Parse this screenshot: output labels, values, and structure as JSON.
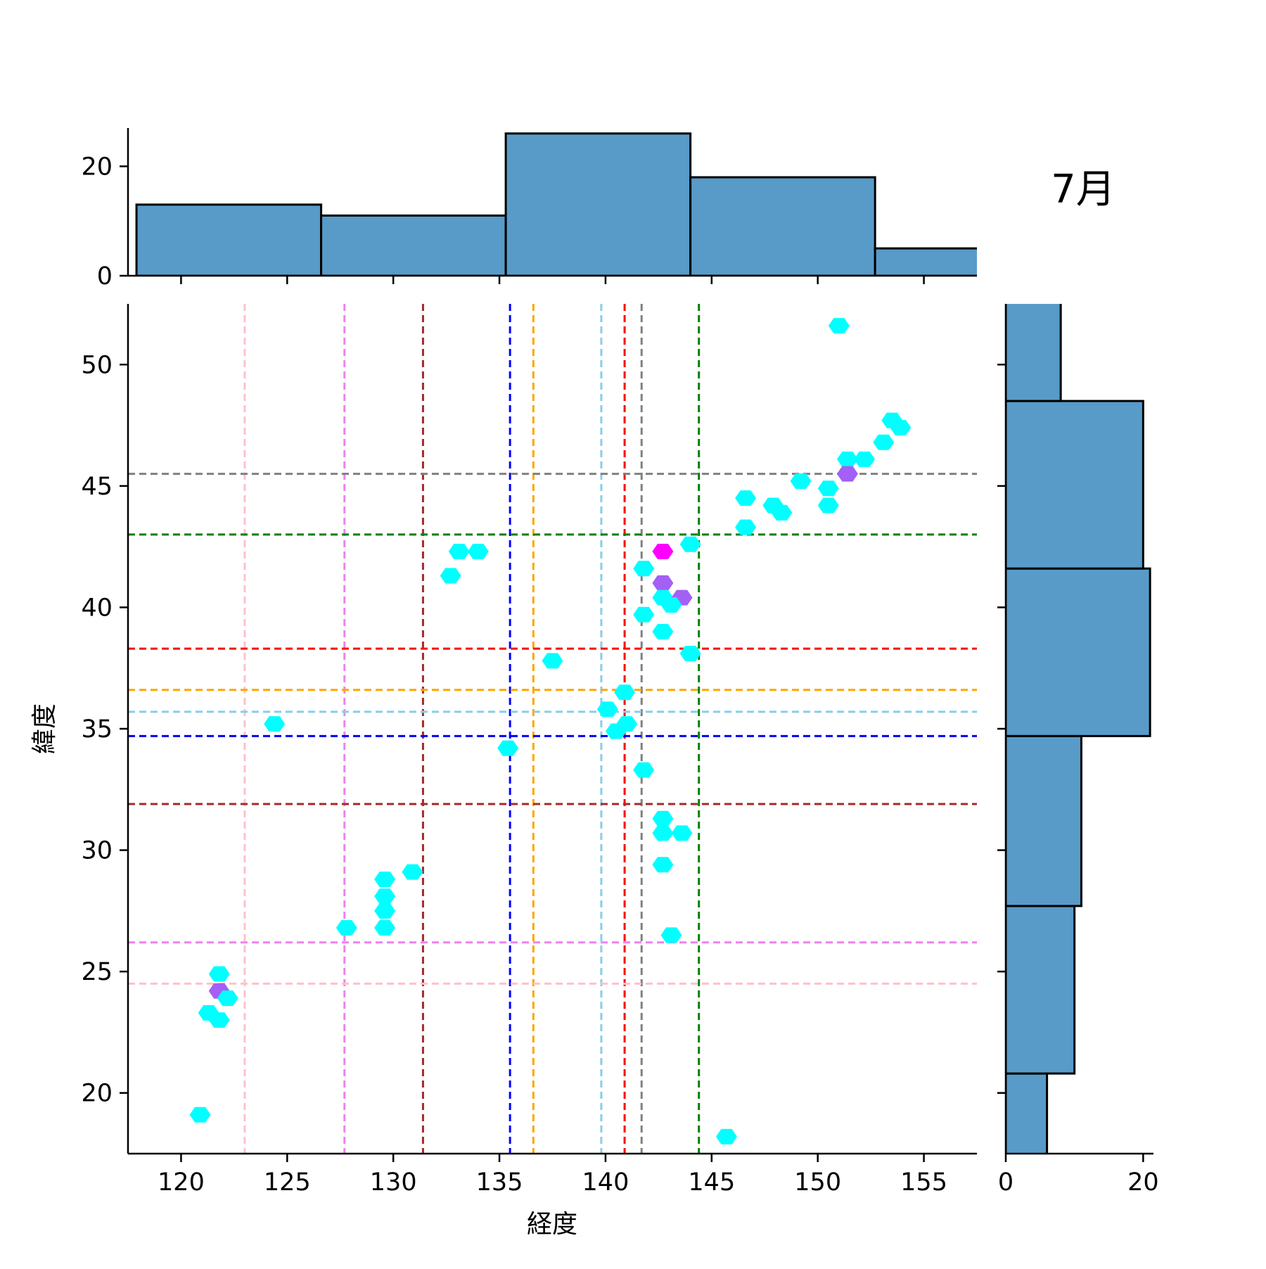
{
  "chart_data": {
    "type": "hexbin-jointplot",
    "title": "7月",
    "xlabel": "経度",
    "ylabel": "緯度",
    "xlim": [
      117.5,
      157.5
    ],
    "ylim": [
      17.5,
      52.5
    ],
    "x_ticks": [
      120,
      125,
      130,
      135,
      140,
      145,
      150,
      155
    ],
    "y_ticks": [
      20,
      25,
      30,
      35,
      40,
      45,
      50
    ],
    "top_hist": {
      "ylim": [
        0,
        27
      ],
      "y_ticks": [
        0,
        20
      ],
      "bins": [
        {
          "x0": 117.9,
          "x1": 126.6,
          "count": 13
        },
        {
          "x0": 126.6,
          "x1": 135.3,
          "count": 11
        },
        {
          "x0": 135.3,
          "x1": 144.0,
          "count": 26
        },
        {
          "x0": 144.0,
          "x1": 152.7,
          "count": 18
        },
        {
          "x0": 152.7,
          "x1": 161.4,
          "count": 5
        }
      ]
    },
    "right_hist": {
      "xlim": [
        0,
        21.5
      ],
      "x_ticks": [
        0,
        20
      ],
      "bins": [
        {
          "y0": 13.8,
          "y1": 20.8,
          "count": 6
        },
        {
          "y0": 20.8,
          "y1": 27.7,
          "count": 10
        },
        {
          "y0": 27.7,
          "y1": 34.7,
          "count": 11
        },
        {
          "y0": 34.7,
          "y1": 41.6,
          "count": 21
        },
        {
          "y0": 41.6,
          "y1": 48.5,
          "count": 20
        },
        {
          "y0": 48.5,
          "y1": 55.4,
          "count": 8
        }
      ]
    },
    "hexbins": [
      {
        "x": 151.0,
        "y": 51.6,
        "color": "#00ffff"
      },
      {
        "x": 153.5,
        "y": 47.7,
        "color": "#00ffff"
      },
      {
        "x": 153.9,
        "y": 47.4,
        "color": "#00ffff"
      },
      {
        "x": 153.1,
        "y": 46.8,
        "color": "#00ffff"
      },
      {
        "x": 151.4,
        "y": 46.1,
        "color": "#00ffff"
      },
      {
        "x": 152.2,
        "y": 46.1,
        "color": "#00ffff"
      },
      {
        "x": 151.4,
        "y": 45.5,
        "color": "#a45ff5"
      },
      {
        "x": 149.2,
        "y": 45.2,
        "color": "#00ffff"
      },
      {
        "x": 150.5,
        "y": 44.9,
        "color": "#00ffff"
      },
      {
        "x": 146.6,
        "y": 44.5,
        "color": "#00ffff"
      },
      {
        "x": 147.9,
        "y": 44.2,
        "color": "#00ffff"
      },
      {
        "x": 150.5,
        "y": 44.2,
        "color": "#00ffff"
      },
      {
        "x": 148.3,
        "y": 43.9,
        "color": "#00ffff"
      },
      {
        "x": 146.6,
        "y": 43.3,
        "color": "#00ffff"
      },
      {
        "x": 144.0,
        "y": 42.6,
        "color": "#00ffff"
      },
      {
        "x": 142.7,
        "y": 42.3,
        "color": "#ff00ff"
      },
      {
        "x": 141.8,
        "y": 41.6,
        "color": "#00ffff"
      },
      {
        "x": 142.7,
        "y": 41.0,
        "color": "#a45ff5"
      },
      {
        "x": 142.7,
        "y": 40.4,
        "color": "#00ffff"
      },
      {
        "x": 143.6,
        "y": 40.4,
        "color": "#a45ff5"
      },
      {
        "x": 143.1,
        "y": 40.1,
        "color": "#00ffff"
      },
      {
        "x": 141.8,
        "y": 39.7,
        "color": "#00ffff"
      },
      {
        "x": 142.7,
        "y": 39.0,
        "color": "#00ffff"
      },
      {
        "x": 144.0,
        "y": 38.1,
        "color": "#00ffff"
      },
      {
        "x": 137.5,
        "y": 37.8,
        "color": "#00ffff"
      },
      {
        "x": 140.9,
        "y": 36.5,
        "color": "#00ffff"
      },
      {
        "x": 140.1,
        "y": 35.8,
        "color": "#00ffff"
      },
      {
        "x": 141.0,
        "y": 35.2,
        "color": "#00ffff"
      },
      {
        "x": 140.5,
        "y": 34.9,
        "color": "#00ffff"
      },
      {
        "x": 124.4,
        "y": 35.2,
        "color": "#00ffff"
      },
      {
        "x": 135.4,
        "y": 34.2,
        "color": "#00ffff"
      },
      {
        "x": 141.8,
        "y": 33.3,
        "color": "#00ffff"
      },
      {
        "x": 142.7,
        "y": 31.3,
        "color": "#00ffff"
      },
      {
        "x": 142.7,
        "y": 30.7,
        "color": "#00ffff"
      },
      {
        "x": 143.6,
        "y": 30.7,
        "color": "#00ffff"
      },
      {
        "x": 142.7,
        "y": 29.4,
        "color": "#00ffff"
      },
      {
        "x": 130.9,
        "y": 29.1,
        "color": "#00ffff"
      },
      {
        "x": 129.6,
        "y": 28.8,
        "color": "#00ffff"
      },
      {
        "x": 129.6,
        "y": 28.1,
        "color": "#00ffff"
      },
      {
        "x": 129.6,
        "y": 27.5,
        "color": "#00ffff"
      },
      {
        "x": 129.6,
        "y": 26.8,
        "color": "#00ffff"
      },
      {
        "x": 127.8,
        "y": 26.8,
        "color": "#00ffff"
      },
      {
        "x": 143.1,
        "y": 26.5,
        "color": "#00ffff"
      },
      {
        "x": 132.7,
        "y": 41.3,
        "color": "#00ffff"
      },
      {
        "x": 133.1,
        "y": 42.3,
        "color": "#00ffff"
      },
      {
        "x": 134.0,
        "y": 42.3,
        "color": "#00ffff"
      },
      {
        "x": 121.8,
        "y": 24.9,
        "color": "#00ffff"
      },
      {
        "x": 121.8,
        "y": 24.2,
        "color": "#a45ff5"
      },
      {
        "x": 122.2,
        "y": 23.9,
        "color": "#00ffff"
      },
      {
        "x": 121.3,
        "y": 23.3,
        "color": "#00ffff"
      },
      {
        "x": 121.8,
        "y": 23.0,
        "color": "#00ffff"
      },
      {
        "x": 120.9,
        "y": 19.1,
        "color": "#00ffff"
      },
      {
        "x": 145.7,
        "y": 18.2,
        "color": "#00ffff"
      }
    ],
    "vlines": [
      {
        "x": 123.0,
        "color": "#ffc0cb"
      },
      {
        "x": 127.7,
        "color": "#ee82ee"
      },
      {
        "x": 131.4,
        "color": "#a52a2a"
      },
      {
        "x": 135.5,
        "color": "#0000ff"
      },
      {
        "x": 136.6,
        "color": "#ffa500"
      },
      {
        "x": 139.8,
        "color": "#87ceeb"
      },
      {
        "x": 140.9,
        "color": "#ff0000"
      },
      {
        "x": 141.7,
        "color": "#808080"
      },
      {
        "x": 144.4,
        "color": "#008000"
      }
    ],
    "hlines": [
      {
        "y": 45.5,
        "color": "#808080"
      },
      {
        "y": 43.0,
        "color": "#008000"
      },
      {
        "y": 38.3,
        "color": "#ff0000"
      },
      {
        "y": 36.6,
        "color": "#ffa500"
      },
      {
        "y": 35.7,
        "color": "#87ceeb"
      },
      {
        "y": 34.7,
        "color": "#0000ff"
      },
      {
        "y": 31.9,
        "color": "#a52a2a"
      },
      {
        "y": 26.2,
        "color": "#ee82ee"
      },
      {
        "y": 24.5,
        "color": "#ffc0cb"
      }
    ],
    "hist_color": "#589bc8"
  }
}
